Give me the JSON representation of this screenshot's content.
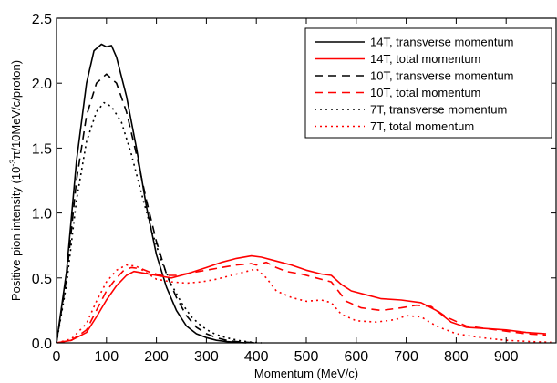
{
  "chart_data": {
    "type": "line",
    "title": "",
    "xlabel": "Momentum (MeV/c)",
    "ylabel": "Positive pion intensity (10",
    "ylabel_sup": "-3",
    "ylabel_rest": "π/10MeV/c/proton)",
    "xlim": [
      0,
      1000
    ],
    "ylim": [
      0,
      2.5
    ],
    "xticks": [
      "0",
      "100",
      "200",
      "300",
      "400",
      "500",
      "600",
      "700",
      "800",
      "900"
    ],
    "xtick_values": [
      0,
      100,
      200,
      300,
      400,
      500,
      600,
      700,
      800,
      900
    ],
    "yticks": [
      "0.0",
      "0.5",
      "1.0",
      "1.5",
      "2.0",
      "2.5"
    ],
    "ytick_values": [
      0,
      0.5,
      1.0,
      1.5,
      2.0,
      2.5
    ],
    "grid": false,
    "legend_position": "top-right",
    "series": [
      {
        "name": "14T, transverse momentum",
        "color": "#000000",
        "style": "solid",
        "points": [
          [
            0,
            0
          ],
          [
            20,
            0.55
          ],
          [
            40,
            1.4
          ],
          [
            60,
            2.0
          ],
          [
            75,
            2.25
          ],
          [
            90,
            2.3
          ],
          [
            100,
            2.28
          ],
          [
            110,
            2.29
          ],
          [
            120,
            2.2
          ],
          [
            140,
            1.9
          ],
          [
            160,
            1.5
          ],
          [
            180,
            1.05
          ],
          [
            200,
            0.68
          ],
          [
            220,
            0.43
          ],
          [
            240,
            0.25
          ],
          [
            260,
            0.13
          ],
          [
            280,
            0.07
          ],
          [
            300,
            0.04
          ],
          [
            320,
            0.02
          ],
          [
            340,
            0.01
          ],
          [
            360,
            0.005
          ],
          [
            380,
            0
          ]
        ]
      },
      {
        "name": "14T, total momentum",
        "color": "#ff0000",
        "style": "solid",
        "points": [
          [
            0,
            0
          ],
          [
            30,
            0.02
          ],
          [
            60,
            0.08
          ],
          [
            80,
            0.2
          ],
          [
            100,
            0.33
          ],
          [
            120,
            0.44
          ],
          [
            140,
            0.52
          ],
          [
            155,
            0.55
          ],
          [
            170,
            0.54
          ],
          [
            200,
            0.52
          ],
          [
            230,
            0.5
          ],
          [
            260,
            0.53
          ],
          [
            300,
            0.58
          ],
          [
            330,
            0.62
          ],
          [
            360,
            0.65
          ],
          [
            390,
            0.67
          ],
          [
            410,
            0.66
          ],
          [
            440,
            0.63
          ],
          [
            470,
            0.6
          ],
          [
            500,
            0.56
          ],
          [
            530,
            0.53
          ],
          [
            550,
            0.52
          ],
          [
            570,
            0.45
          ],
          [
            590,
            0.4
          ],
          [
            620,
            0.37
          ],
          [
            650,
            0.34
          ],
          [
            690,
            0.33
          ],
          [
            730,
            0.31
          ],
          [
            760,
            0.25
          ],
          [
            790,
            0.16
          ],
          [
            820,
            0.12
          ],
          [
            860,
            0.11
          ],
          [
            900,
            0.1
          ],
          [
            940,
            0.08
          ],
          [
            980,
            0.07
          ]
        ]
      },
      {
        "name": "10T, transverse momentum",
        "color": "#000000",
        "style": "dashed",
        "points": [
          [
            0,
            0
          ],
          [
            20,
            0.5
          ],
          [
            40,
            1.25
          ],
          [
            60,
            1.75
          ],
          [
            80,
            2.0
          ],
          [
            100,
            2.07
          ],
          [
            120,
            2.0
          ],
          [
            140,
            1.78
          ],
          [
            160,
            1.45
          ],
          [
            180,
            1.1
          ],
          [
            200,
            0.78
          ],
          [
            220,
            0.53
          ],
          [
            240,
            0.35
          ],
          [
            260,
            0.21
          ],
          [
            280,
            0.12
          ],
          [
            300,
            0.07
          ],
          [
            320,
            0.04
          ],
          [
            340,
            0.02
          ],
          [
            360,
            0.01
          ],
          [
            380,
            0.005
          ],
          [
            400,
            0
          ]
        ]
      },
      {
        "name": "10T, total momentum",
        "color": "#ff0000",
        "style": "dashed",
        "points": [
          [
            0,
            0
          ],
          [
            30,
            0.02
          ],
          [
            60,
            0.1
          ],
          [
            80,
            0.25
          ],
          [
            100,
            0.4
          ],
          [
            120,
            0.5
          ],
          [
            135,
            0.56
          ],
          [
            150,
            0.58
          ],
          [
            170,
            0.57
          ],
          [
            190,
            0.54
          ],
          [
            210,
            0.52
          ],
          [
            240,
            0.52
          ],
          [
            270,
            0.54
          ],
          [
            300,
            0.56
          ],
          [
            330,
            0.58
          ],
          [
            360,
            0.6
          ],
          [
            390,
            0.61
          ],
          [
            400,
            0.6
          ],
          [
            420,
            0.62
          ],
          [
            440,
            0.58
          ],
          [
            460,
            0.55
          ],
          [
            490,
            0.53
          ],
          [
            520,
            0.5
          ],
          [
            550,
            0.47
          ],
          [
            580,
            0.32
          ],
          [
            610,
            0.27
          ],
          [
            650,
            0.25
          ],
          [
            690,
            0.27
          ],
          [
            720,
            0.29
          ],
          [
            750,
            0.28
          ],
          [
            780,
            0.2
          ],
          [
            820,
            0.13
          ],
          [
            860,
            0.11
          ],
          [
            900,
            0.09
          ],
          [
            940,
            0.07
          ],
          [
            980,
            0.06
          ]
        ]
      },
      {
        "name": "7T, transverse momentum",
        "color": "#000000",
        "style": "dotted",
        "points": [
          [
            0,
            0
          ],
          [
            20,
            0.45
          ],
          [
            40,
            1.1
          ],
          [
            60,
            1.55
          ],
          [
            80,
            1.78
          ],
          [
            95,
            1.85
          ],
          [
            110,
            1.82
          ],
          [
            130,
            1.7
          ],
          [
            150,
            1.45
          ],
          [
            170,
            1.15
          ],
          [
            190,
            0.87
          ],
          [
            210,
            0.63
          ],
          [
            230,
            0.45
          ],
          [
            250,
            0.31
          ],
          [
            270,
            0.2
          ],
          [
            290,
            0.13
          ],
          [
            310,
            0.08
          ],
          [
            330,
            0.05
          ],
          [
            350,
            0.03
          ],
          [
            370,
            0.015
          ],
          [
            390,
            0.005
          ],
          [
            410,
            0
          ]
        ]
      },
      {
        "name": "7T, total momentum",
        "color": "#ff0000",
        "style": "dotted",
        "points": [
          [
            0,
            0
          ],
          [
            30,
            0.03
          ],
          [
            60,
            0.15
          ],
          [
            80,
            0.32
          ],
          [
            100,
            0.47
          ],
          [
            120,
            0.56
          ],
          [
            140,
            0.6
          ],
          [
            160,
            0.59
          ],
          [
            180,
            0.54
          ],
          [
            200,
            0.49
          ],
          [
            230,
            0.47
          ],
          [
            260,
            0.46
          ],
          [
            290,
            0.47
          ],
          [
            320,
            0.49
          ],
          [
            350,
            0.52
          ],
          [
            380,
            0.55
          ],
          [
            400,
            0.57
          ],
          [
            420,
            0.5
          ],
          [
            440,
            0.4
          ],
          [
            470,
            0.35
          ],
          [
            500,
            0.32
          ],
          [
            530,
            0.33
          ],
          [
            550,
            0.31
          ],
          [
            570,
            0.22
          ],
          [
            600,
            0.17
          ],
          [
            640,
            0.16
          ],
          [
            680,
            0.18
          ],
          [
            700,
            0.21
          ],
          [
            730,
            0.2
          ],
          [
            760,
            0.13
          ],
          [
            800,
            0.07
          ],
          [
            850,
            0.04
          ],
          [
            900,
            0.02
          ],
          [
            950,
            0.01
          ],
          [
            990,
            0.005
          ]
        ]
      }
    ]
  }
}
